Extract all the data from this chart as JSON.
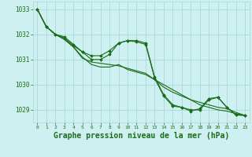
{
  "background_color": "#cef0f0",
  "grid_color": "#a8d8d8",
  "line_color": "#1a6b1a",
  "marker_color": "#1a6b1a",
  "xlabel": "Graphe pression niveau de la mer (hPa)",
  "xlabel_fontsize": 7,
  "xlabel_color": "#1a6b1a",
  "tick_color": "#1a6b1a",
  "ylim": [
    1028.5,
    1033.3
  ],
  "xlim": [
    -0.5,
    23.5
  ],
  "yticks": [
    1029,
    1030,
    1031,
    1032,
    1033
  ],
  "xticks": [
    0,
    1,
    2,
    3,
    4,
    5,
    6,
    7,
    8,
    9,
    10,
    11,
    12,
    13,
    14,
    15,
    16,
    17,
    18,
    19,
    20,
    21,
    22,
    23
  ],
  "series1": [
    1033.0,
    1032.3,
    1032.0,
    1031.85,
    1031.55,
    1031.3,
    1031.15,
    1031.15,
    1031.35,
    1031.65,
    1031.75,
    1031.7,
    1031.6,
    1030.25,
    1029.55,
    1029.15,
    1029.1,
    1028.95,
    1029.05,
    1029.45,
    1029.5,
    1029.1,
    1028.8,
    1028.78
  ],
  "series2": [
    1033.0,
    1032.3,
    1032.0,
    1031.9,
    1031.6,
    1031.3,
    1031.0,
    1031.0,
    1031.2,
    1031.65,
    1031.75,
    1031.75,
    1031.65,
    1030.3,
    1029.6,
    1029.2,
    1029.1,
    1029.0,
    1029.0,
    1029.4,
    1029.5,
    1029.1,
    1028.8,
    1028.78
  ],
  "series3": [
    1033.0,
    1032.3,
    1032.0,
    1031.8,
    1031.5,
    1031.1,
    1030.8,
    1030.7,
    1030.7,
    1030.8,
    1030.6,
    1030.5,
    1030.4,
    1030.2,
    1030.0,
    1029.8,
    1029.6,
    1029.4,
    1029.2,
    1029.1,
    1029.0,
    1028.95,
    1028.85,
    1028.78
  ],
  "series4": [
    1033.0,
    1032.3,
    1032.0,
    1031.8,
    1031.5,
    1031.05,
    1030.9,
    1030.85,
    1030.8,
    1030.75,
    1030.65,
    1030.55,
    1030.45,
    1030.2,
    1029.9,
    1029.7,
    1029.55,
    1029.4,
    1029.3,
    1029.2,
    1029.1,
    1029.05,
    1028.9,
    1028.78
  ]
}
